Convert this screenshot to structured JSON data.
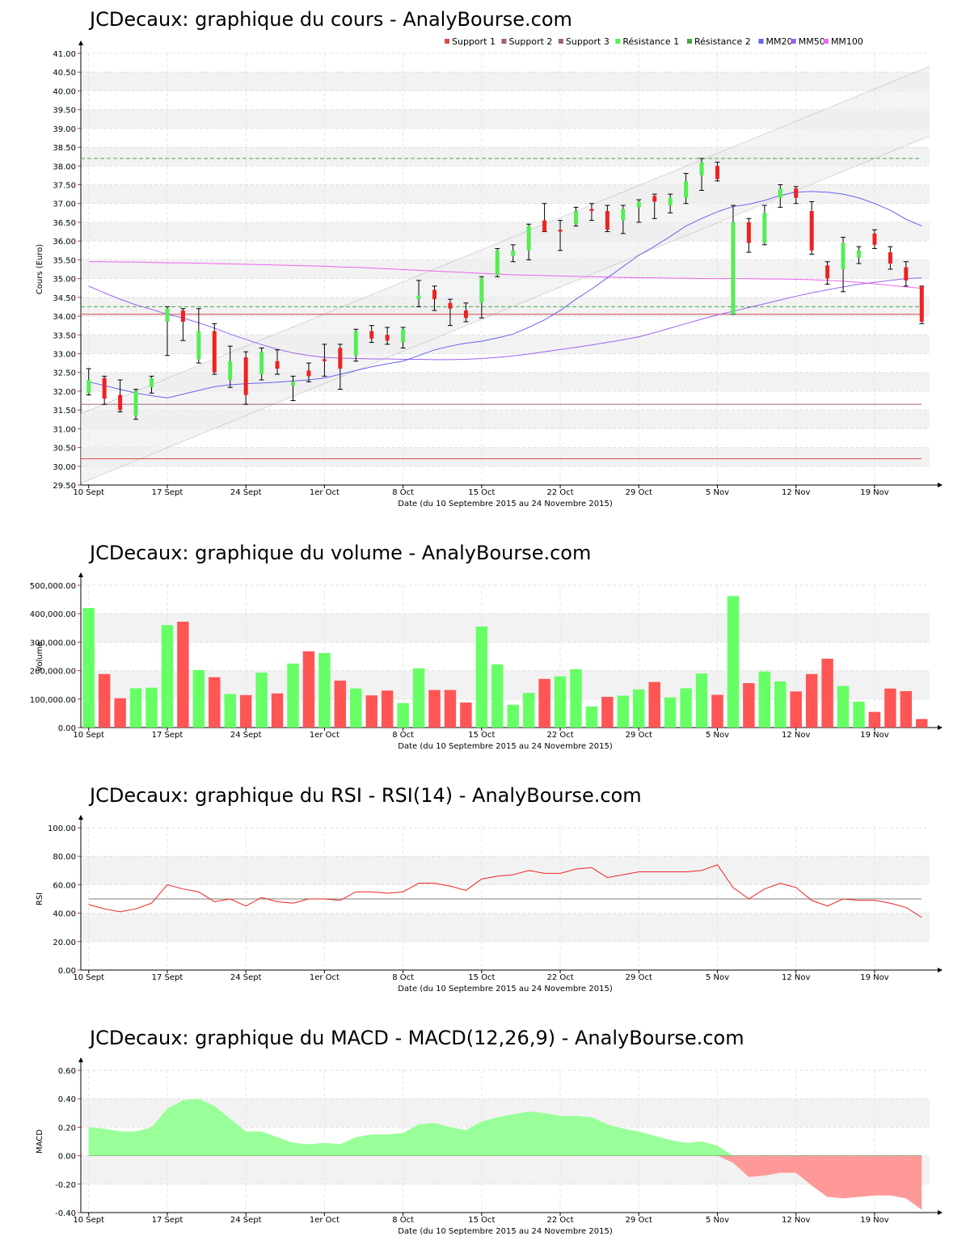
{
  "page": {
    "title_price": "JCDecaux: graphique du cours - AnalyBourse.com",
    "title_volume": "JCDecaux: graphique du volume - AnalyBourse.com",
    "title_rsi": "JCDecaux: graphique du RSI - RSI(14) - AnalyBourse.com",
    "title_macd": "JCDecaux: graphique du MACD - MACD(12,26,9) - AnalyBourse.com"
  },
  "colors": {
    "up": "#54ee54",
    "down": "#ee2222",
    "vol_up": "#66ff66",
    "vol_down": "#ff5555",
    "support": "#d84b4b",
    "support2": "#a06080",
    "resistance": "#44aa44",
    "mm20": "#6464ee",
    "mm50": "#9a64ee",
    "mm100": "#ee64ee",
    "macd_pos": "#99ff99",
    "macd_neg": "#ff9999"
  },
  "chart_data": [
    {
      "type": "line",
      "name": "cours",
      "ylabel": "Cours (Euro)",
      "xlabel": "Date (du 10 Septembre 2015 au 24 Novembre 2015)",
      "ylim": [
        29.5,
        41.0
      ],
      "y_ticks": [
        "29.50",
        "30.00",
        "30.50",
        "31.00",
        "31.50",
        "32.00",
        "32.50",
        "33.00",
        "33.50",
        "34.00",
        "34.50",
        "35.00",
        "35.50",
        "36.00",
        "36.50",
        "37.00",
        "37.50",
        "38.00",
        "38.50",
        "39.00",
        "39.50",
        "40.00",
        "40.50",
        "41.00"
      ],
      "x_ticks": [
        {
          "label": "10 Sept",
          "i": 0
        },
        {
          "label": "17 Sept",
          "i": 5
        },
        {
          "label": "24 Sept",
          "i": 10
        },
        {
          "label": "1er Oct",
          "i": 15
        },
        {
          "label": "8 Oct",
          "i": 20
        },
        {
          "label": "15 Oct",
          "i": 25
        },
        {
          "label": "22 Oct",
          "i": 30
        },
        {
          "label": "29 Oct",
          "i": 35
        },
        {
          "label": "5 Nov",
          "i": 40
        },
        {
          "label": "12 Nov",
          "i": 45
        },
        {
          "label": "19 Nov",
          "i": 50
        }
      ],
      "legend": [
        "Support 1",
        "Support 2",
        "Support 3",
        "Résistance 1",
        "Résistance 2",
        "MM20",
        "MM50",
        "MM100"
      ],
      "grid": true,
      "candles": [
        {
          "o": 31.95,
          "h": 32.6,
          "l": 31.9,
          "c": 32.3
        },
        {
          "o": 32.35,
          "h": 32.4,
          "l": 31.65,
          "c": 31.8
        },
        {
          "o": 31.9,
          "h": 32.3,
          "l": 31.45,
          "c": 31.5
        },
        {
          "o": 31.35,
          "h": 32.05,
          "l": 31.25,
          "c": 32.0
        },
        {
          "o": 32.1,
          "h": 32.4,
          "l": 31.95,
          "c": 32.35
        },
        {
          "o": 33.85,
          "h": 34.25,
          "l": 32.95,
          "c": 34.2
        },
        {
          "o": 34.15,
          "h": 34.2,
          "l": 33.35,
          "c": 33.85
        },
        {
          "o": 32.85,
          "h": 34.2,
          "l": 32.75,
          "c": 33.6
        },
        {
          "o": 33.6,
          "h": 33.8,
          "l": 32.45,
          "c": 32.5
        },
        {
          "o": 32.3,
          "h": 33.2,
          "l": 32.1,
          "c": 32.8
        },
        {
          "o": 32.9,
          "h": 33.05,
          "l": 31.65,
          "c": 31.9
        },
        {
          "o": 32.45,
          "h": 33.15,
          "l": 32.3,
          "c": 33.05
        },
        {
          "o": 32.8,
          "h": 33.1,
          "l": 32.45,
          "c": 32.6
        },
        {
          "o": 32.15,
          "h": 32.4,
          "l": 31.75,
          "c": 32.25
        },
        {
          "o": 32.55,
          "h": 32.75,
          "l": 32.25,
          "c": 32.4
        },
        {
          "o": 32.85,
          "h": 33.25,
          "l": 32.4,
          "c": 32.8
        },
        {
          "o": 33.15,
          "h": 33.25,
          "l": 32.05,
          "c": 32.6
        },
        {
          "o": 32.95,
          "h": 33.65,
          "l": 32.8,
          "c": 33.6
        },
        {
          "o": 33.6,
          "h": 33.75,
          "l": 33.3,
          "c": 33.4
        },
        {
          "o": 33.5,
          "h": 33.7,
          "l": 33.25,
          "c": 33.35
        },
        {
          "o": 33.3,
          "h": 33.7,
          "l": 33.15,
          "c": 33.65
        },
        {
          "o": 34.45,
          "h": 34.95,
          "l": 34.25,
          "c": 34.55
        },
        {
          "o": 34.7,
          "h": 34.8,
          "l": 34.15,
          "c": 34.45
        },
        {
          "o": 34.35,
          "h": 34.45,
          "l": 33.75,
          "c": 34.2
        },
        {
          "o": 34.15,
          "h": 34.35,
          "l": 33.85,
          "c": 33.95
        },
        {
          "o": 34.35,
          "h": 35.05,
          "l": 33.95,
          "c": 35.0
        },
        {
          "o": 35.1,
          "h": 35.8,
          "l": 35.05,
          "c": 35.75
        },
        {
          "o": 35.6,
          "h": 35.9,
          "l": 35.45,
          "c": 35.75
        },
        {
          "o": 35.75,
          "h": 36.45,
          "l": 35.5,
          "c": 36.4
        },
        {
          "o": 36.55,
          "h": 37.0,
          "l": 36.25,
          "c": 36.25
        },
        {
          "o": 36.3,
          "h": 36.55,
          "l": 35.75,
          "c": 36.25
        },
        {
          "o": 36.45,
          "h": 36.9,
          "l": 36.4,
          "c": 36.8
        },
        {
          "o": 36.85,
          "h": 37.0,
          "l": 36.55,
          "c": 36.8
        },
        {
          "o": 36.8,
          "h": 36.95,
          "l": 36.25,
          "c": 36.3
        },
        {
          "o": 36.55,
          "h": 36.95,
          "l": 36.2,
          "c": 36.85
        },
        {
          "o": 36.9,
          "h": 37.1,
          "l": 36.5,
          "c": 37.05
        },
        {
          "o": 37.2,
          "h": 37.25,
          "l": 36.6,
          "c": 37.05
        },
        {
          "o": 36.95,
          "h": 37.25,
          "l": 36.75,
          "c": 37.15
        },
        {
          "o": 37.15,
          "h": 37.8,
          "l": 37.0,
          "c": 37.6
        },
        {
          "o": 37.75,
          "h": 38.2,
          "l": 37.35,
          "c": 38.1
        },
        {
          "o": 38.0,
          "h": 38.1,
          "l": 37.6,
          "c": 37.65
        },
        {
          "o": 34.05,
          "h": 36.95,
          "l": 34.05,
          "c": 36.5
        },
        {
          "o": 36.5,
          "h": 36.6,
          "l": 35.7,
          "c": 35.95
        },
        {
          "o": 35.95,
          "h": 36.95,
          "l": 35.9,
          "c": 36.75
        },
        {
          "o": 37.15,
          "h": 37.5,
          "l": 36.9,
          "c": 37.4
        },
        {
          "o": 37.4,
          "h": 37.45,
          "l": 37.0,
          "c": 37.15
        },
        {
          "o": 36.8,
          "h": 37.05,
          "l": 35.65,
          "c": 35.75
        },
        {
          "o": 35.35,
          "h": 35.45,
          "l": 34.85,
          "c": 35.0
        },
        {
          "o": 35.25,
          "h": 36.1,
          "l": 34.65,
          "c": 35.95
        },
        {
          "o": 35.55,
          "h": 35.85,
          "l": 35.4,
          "c": 35.75
        },
        {
          "o": 36.2,
          "h": 36.3,
          "l": 35.8,
          "c": 35.9
        },
        {
          "o": 35.7,
          "h": 35.85,
          "l": 35.25,
          "c": 35.4
        },
        {
          "o": 35.3,
          "h": 35.45,
          "l": 34.8,
          "c": 34.95
        },
        {
          "o": 34.8,
          "h": 34.8,
          "l": 33.8,
          "c": 33.85
        }
      ],
      "support_1": 30.2,
      "support_2": 31.65,
      "support_3": 34.05,
      "resistance_1": 34.25,
      "resistance_2": 38.2,
      "channel_lower": {
        "start": 29.55,
        "end": 38.8
      },
      "channel_upper": {
        "start": 31.4,
        "end": 40.65
      },
      "mm20": [
        32.25,
        32.15,
        32.05,
        31.95,
        31.88,
        31.82,
        31.92,
        32.02,
        32.12,
        32.17,
        32.2,
        32.22,
        32.24,
        32.27,
        32.3,
        32.35,
        32.45,
        32.55,
        32.65,
        32.73,
        32.8,
        32.95,
        33.1,
        33.2,
        33.28,
        33.33,
        33.42,
        33.52,
        33.7,
        33.9,
        34.15,
        34.45,
        34.72,
        35.02,
        35.32,
        35.62,
        35.86,
        36.12,
        36.4,
        36.6,
        36.78,
        36.92,
        36.98,
        37.08,
        37.22,
        37.3,
        37.32,
        37.3,
        37.25,
        37.15,
        37.0,
        36.82,
        36.58,
        36.4
      ],
      "mm50": [
        34.8,
        34.62,
        34.45,
        34.3,
        34.18,
        34.05,
        33.95,
        33.82,
        33.68,
        33.52,
        33.38,
        33.24,
        33.12,
        33.02,
        32.95,
        32.9,
        32.88,
        32.87,
        32.86,
        32.86,
        32.85,
        32.85,
        32.84,
        32.84,
        32.85,
        32.87,
        32.9,
        32.94,
        32.99,
        33.05,
        33.11,
        33.17,
        33.23,
        33.3,
        33.37,
        33.45,
        33.56,
        33.68,
        33.8,
        33.92,
        34.03,
        34.13,
        34.23,
        34.33,
        34.43,
        34.53,
        34.62,
        34.7,
        34.78,
        34.85,
        34.9,
        34.95,
        35.0,
        35.02
      ],
      "mm100": [
        35.45,
        35.45,
        35.44,
        35.44,
        35.43,
        35.42,
        35.42,
        35.41,
        35.4,
        35.39,
        35.38,
        35.37,
        35.36,
        35.35,
        35.34,
        35.33,
        35.31,
        35.3,
        35.28,
        35.26,
        35.24,
        35.22,
        35.2,
        35.18,
        35.16,
        35.14,
        35.12,
        35.1,
        35.09,
        35.08,
        35.07,
        35.06,
        35.05,
        35.04,
        35.03,
        35.02,
        35.02,
        35.01,
        35.01,
        35.0,
        35.0,
        35.0,
        35.0,
        34.99,
        34.99,
        34.98,
        34.97,
        34.95,
        34.93,
        34.9,
        34.86,
        34.82,
        34.78,
        34.74
      ]
    },
    {
      "type": "bar",
      "name": "volume",
      "ylabel": "Volume",
      "xlabel": "Date (du 10 Septembre 2015 au 24 Novembre 2015)",
      "ylim": [
        0,
        500000
      ],
      "y_ticks": [
        "0.00",
        "100,000.00",
        "200,000.00",
        "300,000.00",
        "400,000.00",
        "500,000.00"
      ],
      "x_ticks": [
        {
          "label": "10 Sept",
          "i": 0
        },
        {
          "label": "17 Sept",
          "i": 5
        },
        {
          "label": "24 Sept",
          "i": 10
        },
        {
          "label": "1er Oct",
          "i": 15
        },
        {
          "label": "8 Oct",
          "i": 20
        },
        {
          "label": "15 Oct",
          "i": 25
        },
        {
          "label": "22 Oct",
          "i": 30
        },
        {
          "label": "29 Oct",
          "i": 35
        },
        {
          "label": "5 Nov",
          "i": 40
        },
        {
          "label": "12 Nov",
          "i": 45
        },
        {
          "label": "19 Nov",
          "i": 50
        }
      ],
      "values": [
        420000,
        188000,
        103000,
        138000,
        140000,
        360000,
        372000,
        202000,
        177000,
        118000,
        114000,
        193000,
        120000,
        225000,
        268000,
        262000,
        165000,
        137000,
        113000,
        130000,
        86000,
        208000,
        132000,
        132000,
        88000,
        355000,
        222000,
        80000,
        122000,
        171000,
        180000,
        205000,
        74000,
        108000,
        112000,
        134000,
        160000,
        106000,
        138000,
        190000,
        115000,
        462000,
        156000,
        197000,
        162000,
        127000,
        188000,
        242000,
        146000,
        91000,
        55000,
        137000,
        128000,
        30000
      ],
      "up": [
        true,
        false,
        false,
        true,
        true,
        true,
        false,
        true,
        false,
        true,
        false,
        true,
        false,
        true,
        false,
        true,
        false,
        true,
        false,
        false,
        true,
        true,
        false,
        false,
        false,
        true,
        true,
        true,
        true,
        false,
        true,
        true,
        true,
        false,
        true,
        true,
        false,
        true,
        true,
        true,
        false,
        true,
        false,
        true,
        true,
        false,
        false,
        false,
        true,
        true,
        false,
        false,
        false,
        false
      ]
    },
    {
      "type": "line",
      "name": "rsi",
      "ylabel": "RSI",
      "xlabel": "Date (du 10 Septembre 2015 au 24 Novembre 2015)",
      "ylim": [
        0,
        100
      ],
      "y_ticks": [
        "0.00",
        "20.00",
        "40.00",
        "60.00",
        "80.00",
        "100.00"
      ],
      "x_ticks": [
        {
          "label": "10 Sept",
          "i": 0
        },
        {
          "label": "17 Sept",
          "i": 5
        },
        {
          "label": "24 Sept",
          "i": 10
        },
        {
          "label": "1er Oct",
          "i": 15
        },
        {
          "label": "8 Oct",
          "i": 20
        },
        {
          "label": "15 Oct",
          "i": 25
        },
        {
          "label": "22 Oct",
          "i": 30
        },
        {
          "label": "29 Oct",
          "i": 35
        },
        {
          "label": "5 Nov",
          "i": 40
        },
        {
          "label": "12 Nov",
          "i": 45
        },
        {
          "label": "19 Nov",
          "i": 50
        }
      ],
      "reference": 50,
      "values": [
        46,
        43,
        41,
        43,
        47,
        60,
        57,
        55,
        48,
        50,
        45,
        51,
        48,
        47,
        50,
        50,
        49,
        55,
        55,
        54,
        55,
        61,
        61,
        59,
        56,
        64,
        66,
        67,
        70,
        68,
        68,
        71,
        72,
        65,
        67,
        69,
        69,
        69,
        69,
        70,
        74,
        58,
        50,
        57,
        61,
        58,
        49,
        45,
        50,
        49,
        49,
        47,
        44,
        37
      ]
    },
    {
      "type": "area",
      "name": "macd",
      "ylabel": "MACD",
      "xlabel": "Date (du 10 Septembre 2015 au 24 Novembre 2015)",
      "ylim": [
        -0.4,
        0.6
      ],
      "y_ticks": [
        "-0.40",
        "-0.20",
        "0.00",
        "0.20",
        "0.40",
        "0.60"
      ],
      "x_ticks": [
        {
          "label": "10 Sept",
          "i": 0
        },
        {
          "label": "17 Sept",
          "i": 5
        },
        {
          "label": "24 Sept",
          "i": 10
        },
        {
          "label": "1er Oct",
          "i": 15
        },
        {
          "label": "8 Oct",
          "i": 20
        },
        {
          "label": "15 Oct",
          "i": 25
        },
        {
          "label": "22 Oct",
          "i": 30
        },
        {
          "label": "29 Oct",
          "i": 35
        },
        {
          "label": "5 Nov",
          "i": 40
        },
        {
          "label": "12 Nov",
          "i": 45
        },
        {
          "label": "19 Nov",
          "i": 50
        }
      ],
      "values": [
        0.2,
        0.19,
        0.17,
        0.17,
        0.2,
        0.33,
        0.39,
        0.4,
        0.35,
        0.26,
        0.17,
        0.17,
        0.13,
        0.09,
        0.08,
        0.09,
        0.08,
        0.13,
        0.15,
        0.15,
        0.16,
        0.22,
        0.23,
        0.2,
        0.18,
        0.24,
        0.27,
        0.29,
        0.31,
        0.3,
        0.28,
        0.28,
        0.27,
        0.22,
        0.19,
        0.17,
        0.14,
        0.11,
        0.09,
        0.1,
        0.07,
        -0.05,
        -0.15,
        -0.14,
        -0.12,
        -0.12,
        -0.21,
        -0.29,
        -0.3,
        -0.29,
        -0.28,
        -0.28,
        -0.3,
        -0.38
      ]
    }
  ]
}
